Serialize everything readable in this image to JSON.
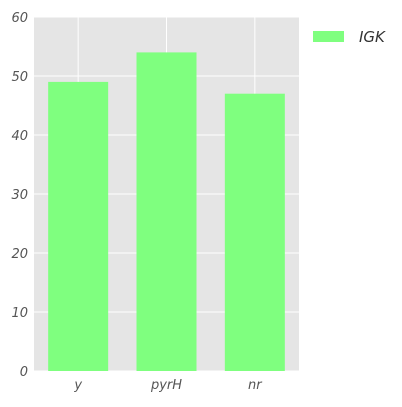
{
  "chart_data": {
    "type": "bar",
    "categories": [
      "y",
      "pyrH",
      "nr"
    ],
    "series": [
      {
        "name": "IGK",
        "values": [
          49,
          54,
          47
        ],
        "color": "#7fff7f"
      }
    ],
    "ylim": [
      0,
      60
    ],
    "yticks": [
      0,
      10,
      20,
      30,
      40,
      50,
      60
    ],
    "grid": true,
    "legend_position": "top-right, outside plot",
    "plot_background": "#e5e5e5",
    "gridline_color": "#ffffff"
  }
}
